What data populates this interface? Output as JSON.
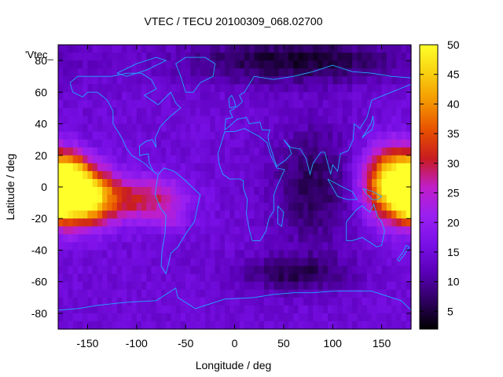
{
  "chart_data": {
    "type": "heatmap",
    "title": "VTEC / TECU 20100309_068.02700",
    "xlabel": "Longitude / deg",
    "ylabel": "Latitude / deg",
    "key_label": "'Vtec_",
    "xlim": [
      -180,
      180
    ],
    "ylim": [
      -90,
      90
    ],
    "x_ticks": [
      -150,
      -100,
      -50,
      0,
      50,
      100,
      150
    ],
    "y_ticks": [
      -80,
      -60,
      -40,
      -20,
      0,
      20,
      40,
      60,
      80
    ],
    "colorbar": {
      "range": [
        2,
        50
      ],
      "ticks": [
        5,
        10,
        15,
        20,
        25,
        30,
        35,
        40,
        45,
        50
      ],
      "palette": [
        "#000000",
        "#2e0060",
        "#5a00b8",
        "#7a10e8",
        "#9a20f0",
        "#c01ec8",
        "#c81c20",
        "#e85000",
        "#f49600",
        "#f8d010",
        "#ffff2a"
      ]
    },
    "tec_features": [
      {
        "lon": -160,
        "lat": -5,
        "vtec": 42,
        "sigma_lon": 22,
        "sigma_lat": 13
      },
      {
        "lon": -168,
        "lat": 12,
        "vtec": 12,
        "sigma_lon": 12,
        "sigma_lat": 8
      },
      {
        "lon": -115,
        "lat": -8,
        "vtec": 12,
        "sigma_lon": 28,
        "sigma_lat": 10
      },
      {
        "lon": -75,
        "lat": -8,
        "vtec": 9,
        "sigma_lon": 22,
        "sigma_lat": 10
      },
      {
        "lon": -65,
        "lat": -22,
        "vtec": 5,
        "sigma_lon": 10,
        "sigma_lat": 5
      },
      {
        "lon": 162,
        "lat": 2,
        "vtec": 38,
        "sigma_lon": 20,
        "sigma_lat": 15
      },
      {
        "lon": 178,
        "lat": -12,
        "vtec": 10,
        "sigma_lon": 8,
        "sigma_lat": 6
      },
      {
        "lon": 60,
        "lat": 80,
        "vtec": -10,
        "sigma_lon": 80,
        "sigma_lat": 10
      },
      {
        "lon": 80,
        "lat": 0,
        "vtec": -8,
        "sigma_lon": 30,
        "sigma_lat": 28
      },
      {
        "lon": 60,
        "lat": -55,
        "vtec": -8,
        "sigma_lon": 40,
        "sigma_lat": 8
      }
    ],
    "vtec_background": 14.5
  },
  "colors": {
    "coastline": "#1fa8ff",
    "frame": "#000000",
    "background": "#ffffff"
  }
}
